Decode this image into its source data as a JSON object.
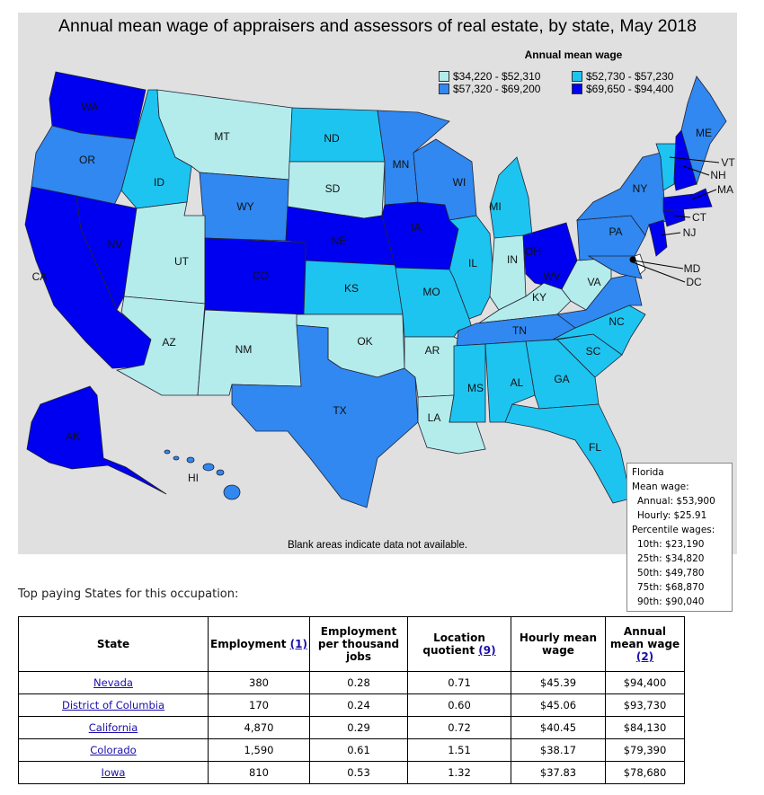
{
  "map": {
    "title": "Annual mean wage of appraisers and assessors of real estate, by state, May 2018",
    "legend_title": "Annual mean wage",
    "legend": [
      {
        "label": "$34,220 - $52,310",
        "color": "#b4ecec"
      },
      {
        "label": "$52,730 - $57,230",
        "color": "#1ec4f0"
      },
      {
        "label": "$57,320 - $69,200",
        "color": "#3088f0"
      },
      {
        "label": "$69,650 - $94,400",
        "color": "#0000f0"
      }
    ],
    "blank_note": "Blank areas indicate data not available.",
    "states": {
      "WA": 3,
      "OR": 2,
      "CA": 3,
      "NV": 3,
      "ID": 1,
      "MT": 0,
      "WY": 2,
      "UT": 0,
      "CO": 3,
      "AZ": 0,
      "NM": 0,
      "ND": 1,
      "SD": 0,
      "NE": 3,
      "KS": 1,
      "OK": 0,
      "TX": 2,
      "MN": 2,
      "IA": 3,
      "WI": 2,
      "IL": 1,
      "MO": 1,
      "AR": 0,
      "LA": 0,
      "MI": 1,
      "IN": 0,
      "OH": 3,
      "KY": 0,
      "TN": 2,
      "MS": 1,
      "AL": 1,
      "GA": 1,
      "FL": 1,
      "SC": 1,
      "NC": 1,
      "VA": 2,
      "WV": 0,
      "PA": 2,
      "NY": 2,
      "NJ": 3,
      "MD": 2,
      "CT": 3,
      "MA": 3,
      "VT": 1,
      "NH": 3,
      "ME": 2,
      "AK": 3,
      "HI": 2,
      "DC": 3
    },
    "tooltip": {
      "state": "Florida",
      "mean_heading": "Mean wage:",
      "annual": "Annual: $53,900",
      "hourly": "Hourly: $25.91",
      "pct_heading": "Percentile wages:",
      "p10": "10th: $23,190",
      "p25": "25th: $34,820",
      "p50": "50th: $49,780",
      "p75": "75th: $68,870",
      "p90": "90th: $90,040"
    }
  },
  "top_heading": "Top paying States for this occupation:",
  "table": {
    "headers": [
      "State",
      "Employment",
      "Employment per thousand jobs",
      "Location quotient",
      "Hourly mean wage",
      "Annual mean wage"
    ],
    "notes": {
      "employment": "(1)",
      "lq": "(9)",
      "annual": "(2)"
    },
    "rows": [
      [
        "Nevada",
        "380",
        "0.28",
        "0.71",
        "$45.39",
        "$94,400"
      ],
      [
        "District of Columbia",
        "170",
        "0.24",
        "0.60",
        "$45.06",
        "$93,730"
      ],
      [
        "California",
        "4,870",
        "0.29",
        "0.72",
        "$40.45",
        "$84,130"
      ],
      [
        "Colorado",
        "1,590",
        "0.61",
        "1.51",
        "$38.17",
        "$79,390"
      ],
      [
        "Iowa",
        "810",
        "0.53",
        "1.32",
        "$37.83",
        "$78,680"
      ]
    ]
  }
}
